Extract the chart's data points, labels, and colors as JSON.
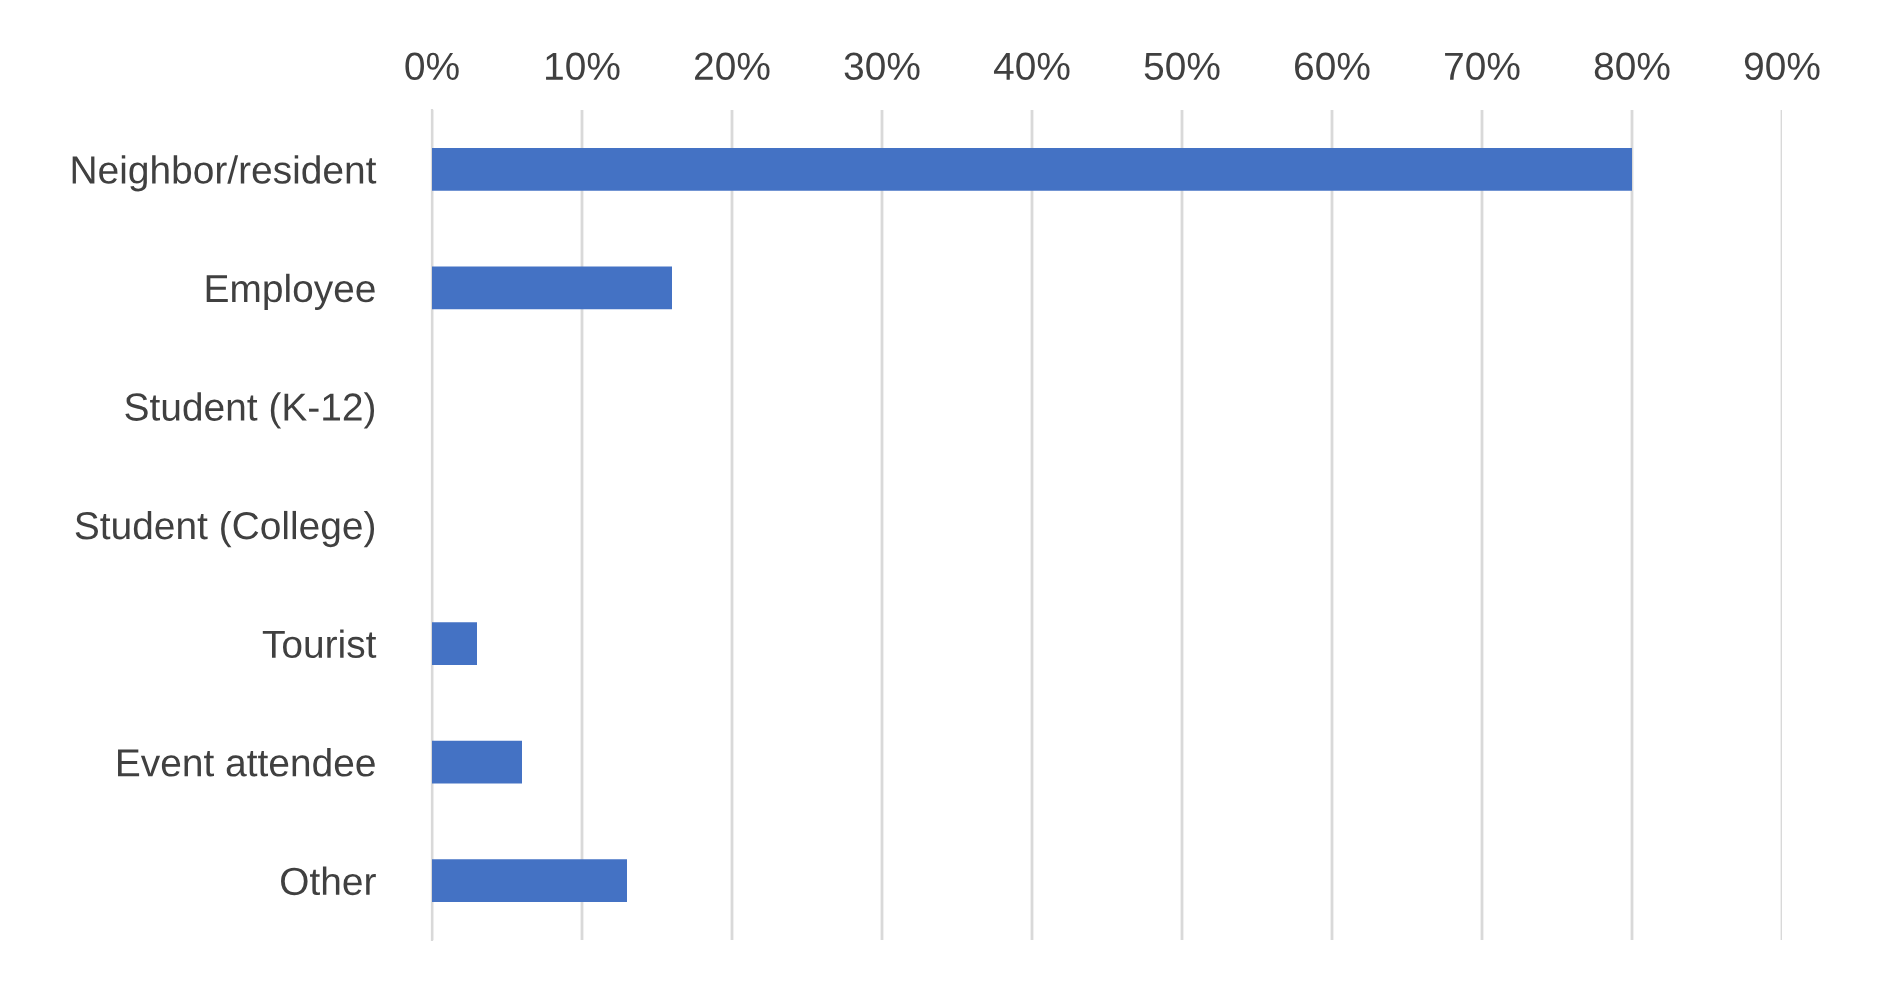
{
  "chart_data": {
    "type": "bar",
    "orientation": "horizontal",
    "categories": [
      "Neighbor/resident",
      "Employee",
      "Student (K-12)",
      "Student (College)",
      "Tourist",
      "Event attendee",
      "Other"
    ],
    "values": [
      80,
      16,
      0,
      0,
      3,
      6,
      13
    ],
    "color": "#4472c4",
    "xlim": [
      0,
      90
    ],
    "xticks": [
      {
        "value": 0,
        "label": "0%"
      },
      {
        "value": 10,
        "label": "10%"
      },
      {
        "value": 20,
        "label": "20%"
      },
      {
        "value": 30,
        "label": "30%"
      },
      {
        "value": 40,
        "label": "40%"
      },
      {
        "value": 50,
        "label": "50%"
      },
      {
        "value": 60,
        "label": "60%"
      },
      {
        "value": 70,
        "label": "70%"
      },
      {
        "value": 80,
        "label": "80%"
      },
      {
        "value": 90,
        "label": "90%"
      }
    ],
    "grid": "x"
  }
}
